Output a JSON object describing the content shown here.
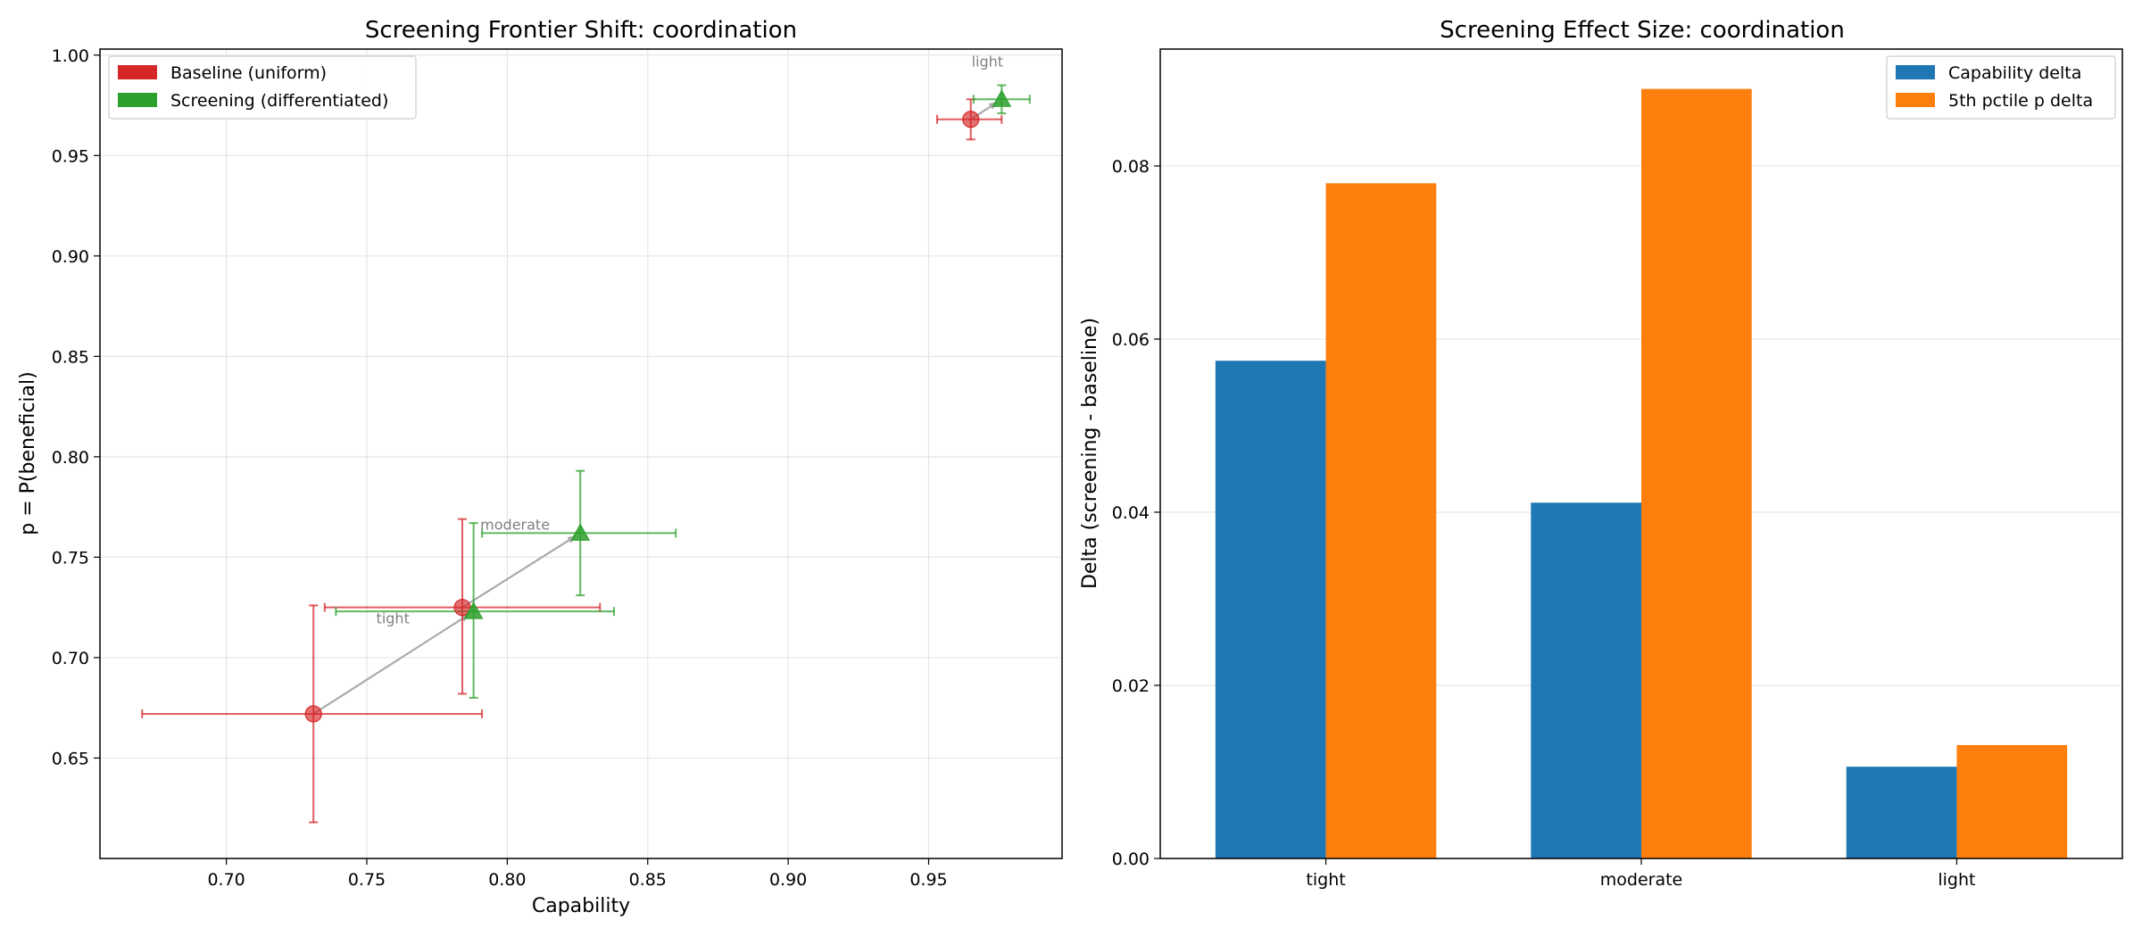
{
  "chart_data": [
    {
      "type": "scatter",
      "title": "Screening Frontier Shift: coordination",
      "xlabel": "Capability",
      "ylabel": "p = P(beneficial)",
      "xlim": [
        0.655,
        0.9975
      ],
      "ylim": [
        0.6,
        1.003
      ],
      "xticks": [
        0.7,
        0.75,
        0.8,
        0.85,
        0.9,
        0.95
      ],
      "xtick_labels": [
        "0.70",
        "0.75",
        "0.80",
        "0.85",
        "0.90",
        "0.95"
      ],
      "yticks": [
        0.65,
        0.7,
        0.75,
        0.8,
        0.85,
        0.9,
        0.95,
        1.0
      ],
      "ytick_labels": [
        "0.65",
        "0.70",
        "0.75",
        "0.80",
        "0.85",
        "0.90",
        "0.95",
        "1.00"
      ],
      "grid": true,
      "legend_position": "top-left",
      "series": [
        {
          "name": "Baseline (uniform)",
          "color": "#d62728",
          "marker": "circle",
          "points": [
            {
              "label": "tight",
              "x": 0.731,
              "y": 0.672,
              "xerr": [
                0.67,
                0.791
              ],
              "yerr": [
                0.618,
                0.726
              ]
            },
            {
              "label": "moderate",
              "x": 0.784,
              "y": 0.725,
              "xerr": [
                0.735,
                0.833
              ],
              "yerr": [
                0.682,
                0.769
              ]
            },
            {
              "label": "light",
              "x": 0.965,
              "y": 0.968,
              "xerr": [
                0.953,
                0.976
              ],
              "yerr": [
                0.958,
                0.978
              ]
            }
          ]
        },
        {
          "name": "Screening (differentiated)",
          "color": "#2ca02c",
          "marker": "triangle",
          "points": [
            {
              "label": "tight",
              "x": 0.788,
              "y": 0.723,
              "xerr": [
                0.739,
                0.838
              ],
              "yerr": [
                0.68,
                0.767
              ]
            },
            {
              "label": "moderate",
              "x": 0.826,
              "y": 0.762,
              "xerr": [
                0.791,
                0.86
              ],
              "yerr": [
                0.731,
                0.793
              ]
            },
            {
              "label": "light",
              "x": 0.976,
              "y": 0.978,
              "xerr": [
                0.966,
                0.986
              ],
              "yerr": [
                0.971,
                0.985
              ]
            }
          ]
        }
      ],
      "annotations": [
        "tight",
        "moderate",
        "light"
      ]
    },
    {
      "type": "bar",
      "title": "Screening Effect Size: coordination",
      "xlabel": "",
      "ylabel": "Delta (screening - baseline)",
      "categories": [
        "tight",
        "moderate",
        "light"
      ],
      "ylim": [
        0,
        0.0935
      ],
      "yticks": [
        0.0,
        0.02,
        0.04,
        0.06,
        0.08
      ],
      "ytick_labels": [
        "0.00",
        "0.02",
        "0.04",
        "0.06",
        "0.08"
      ],
      "grid": true,
      "legend_position": "top-right",
      "series": [
        {
          "name": "Capability delta",
          "color": "#1f77b4",
          "values": [
            0.0575,
            0.0411,
            0.0106
          ]
        },
        {
          "name": "5th pctile p delta",
          "color": "#ff7f0e",
          "values": [
            0.078,
            0.0889,
            0.0131
          ]
        }
      ]
    }
  ]
}
